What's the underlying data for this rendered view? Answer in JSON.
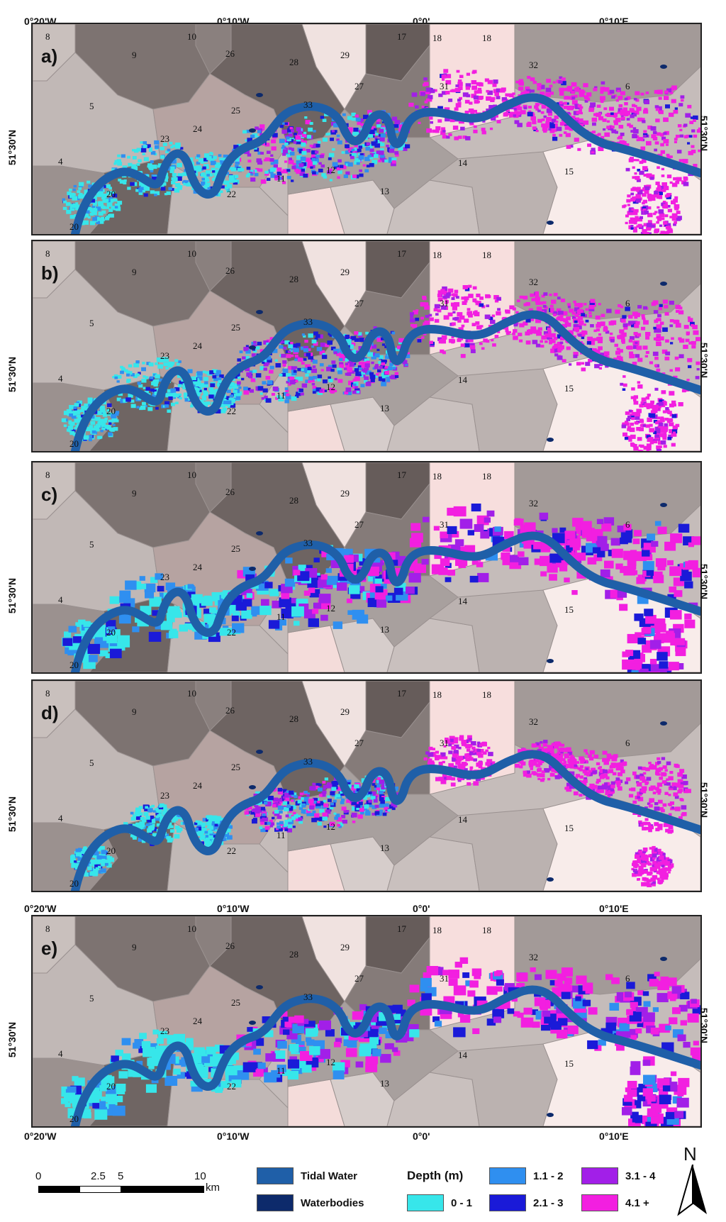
{
  "longitude_labels": {
    "w20": "0°20'W",
    "w10": "0°10'W",
    "zero": "0°0'",
    "e10": "0°10'E"
  },
  "latitude_label": "51°30'N",
  "panels": [
    {
      "id": "a",
      "label": "a)"
    },
    {
      "id": "b",
      "label": "b)"
    },
    {
      "id": "c",
      "label": "c)"
    },
    {
      "id": "d",
      "label": "d)"
    },
    {
      "id": "e",
      "label": "e)"
    }
  ],
  "district_numbers": [
    "8",
    "10",
    "9",
    "26",
    "28",
    "29",
    "17",
    "18",
    "18",
    "32",
    "6",
    "5",
    "24",
    "25",
    "33",
    "27",
    "31",
    "23",
    "4",
    "20",
    "20",
    "22",
    "11",
    "12",
    "13",
    "14",
    "15"
  ],
  "scale_bar": {
    "labels": [
      "0",
      "2.5",
      "5",
      "10"
    ],
    "unit": "km"
  },
  "legend": {
    "tidal_water": "Tidal Water",
    "waterbodies": "Waterbodies",
    "depth_title": "Depth (m)",
    "classes": [
      "0 - 1",
      "1.1 - 2",
      "2.1 - 3",
      "3.1 - 4",
      "4.1 +"
    ]
  },
  "north_arrow": "N",
  "colors": {
    "tidal_water": "#1f5fa8",
    "waterbodies": "#0d2a6b",
    "d0_1": "#37e6ea",
    "d1_2": "#2f8ff0",
    "d2_3": "#1a1ad8",
    "d3_4": "#a21fe8",
    "d4_plus": "#f21fe0"
  }
}
